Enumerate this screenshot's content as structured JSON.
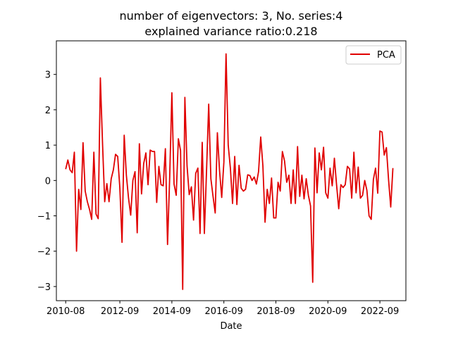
{
  "chart_data": {
    "type": "line",
    "title_line1": "number of eigenvectors: 3, No. series:4",
    "title_line2": "explained variance ratio:0.218",
    "xlabel": "Date",
    "ylabel": "",
    "x_tick_labels": [
      "2010-08",
      "2012-09",
      "2014-09",
      "2016-09",
      "2018-09",
      "2020-09",
      "2022-09"
    ],
    "x_tick_positions": [
      0,
      25,
      49,
      73,
      97,
      121,
      145
    ],
    "y_ticks": [
      -3,
      -2,
      -1,
      0,
      1,
      2,
      3
    ],
    "y_tick_labels": [
      "−3",
      "−2",
      "−1",
      "0",
      "1",
      "2",
      "3"
    ],
    "xlim": [
      -4.3,
      157.0
    ],
    "ylim": [
      -3.4,
      3.95
    ],
    "grid": false,
    "legend_position": "top-right",
    "series": [
      {
        "name": "PCA",
        "color": "#e00000",
        "values": [
          0.32,
          0.58,
          0.3,
          0.22,
          0.8,
          -2.0,
          -0.25,
          -0.82,
          1.07,
          -0.3,
          -0.6,
          -0.82,
          -1.1,
          0.8,
          -0.95,
          -1.08,
          2.9,
          1.05,
          -0.6,
          -0.09,
          -0.6,
          0.05,
          0.3,
          0.74,
          0.68,
          -0.22,
          -1.75,
          1.28,
          0.15,
          -0.5,
          -0.98,
          0.0,
          0.25,
          -1.48,
          1.04,
          -0.38,
          0.48,
          0.78,
          -0.12,
          0.86,
          0.82,
          0.82,
          -0.62,
          0.4,
          -0.12,
          -0.15,
          0.9,
          -1.81,
          0.1,
          2.48,
          -0.1,
          -0.42,
          1.18,
          0.85,
          -3.08,
          2.35,
          0.42,
          -0.4,
          -0.18,
          -1.12,
          0.2,
          0.35,
          -1.5,
          1.08,
          -1.5,
          0.28,
          2.16,
          0.05,
          -0.45,
          -0.92,
          1.35,
          0.28,
          -0.48,
          0.52,
          3.58,
          1.0,
          0.35,
          -0.65,
          0.68,
          -0.68,
          0.43,
          -0.22,
          -0.3,
          -0.25,
          0.16,
          0.14,
          0.0,
          0.1,
          -0.1,
          0.25,
          1.23,
          0.42,
          -1.18,
          -0.25,
          -0.65,
          0.07,
          -1.06,
          -1.06,
          -0.05,
          -0.3,
          0.82,
          0.55,
          -0.05,
          0.15,
          -0.65,
          0.3,
          -0.65,
          0.96,
          -0.45,
          0.15,
          -0.52,
          0.05,
          -0.42,
          -0.72,
          -2.88,
          0.92,
          -0.35,
          0.78,
          0.3,
          0.94,
          -0.35,
          -0.5,
          0.35,
          -0.15,
          0.63,
          -0.12,
          -0.8,
          -0.12,
          -0.2,
          -0.12,
          0.4,
          0.33,
          -0.5,
          0.8,
          -0.35,
          0.38,
          -0.5,
          -0.42,
          0.0,
          -0.28,
          -1.0,
          -1.1,
          0.03,
          0.35,
          -0.36,
          1.4,
          1.37,
          0.72,
          0.93,
          0.02,
          -0.75,
          0.35
        ]
      }
    ]
  }
}
